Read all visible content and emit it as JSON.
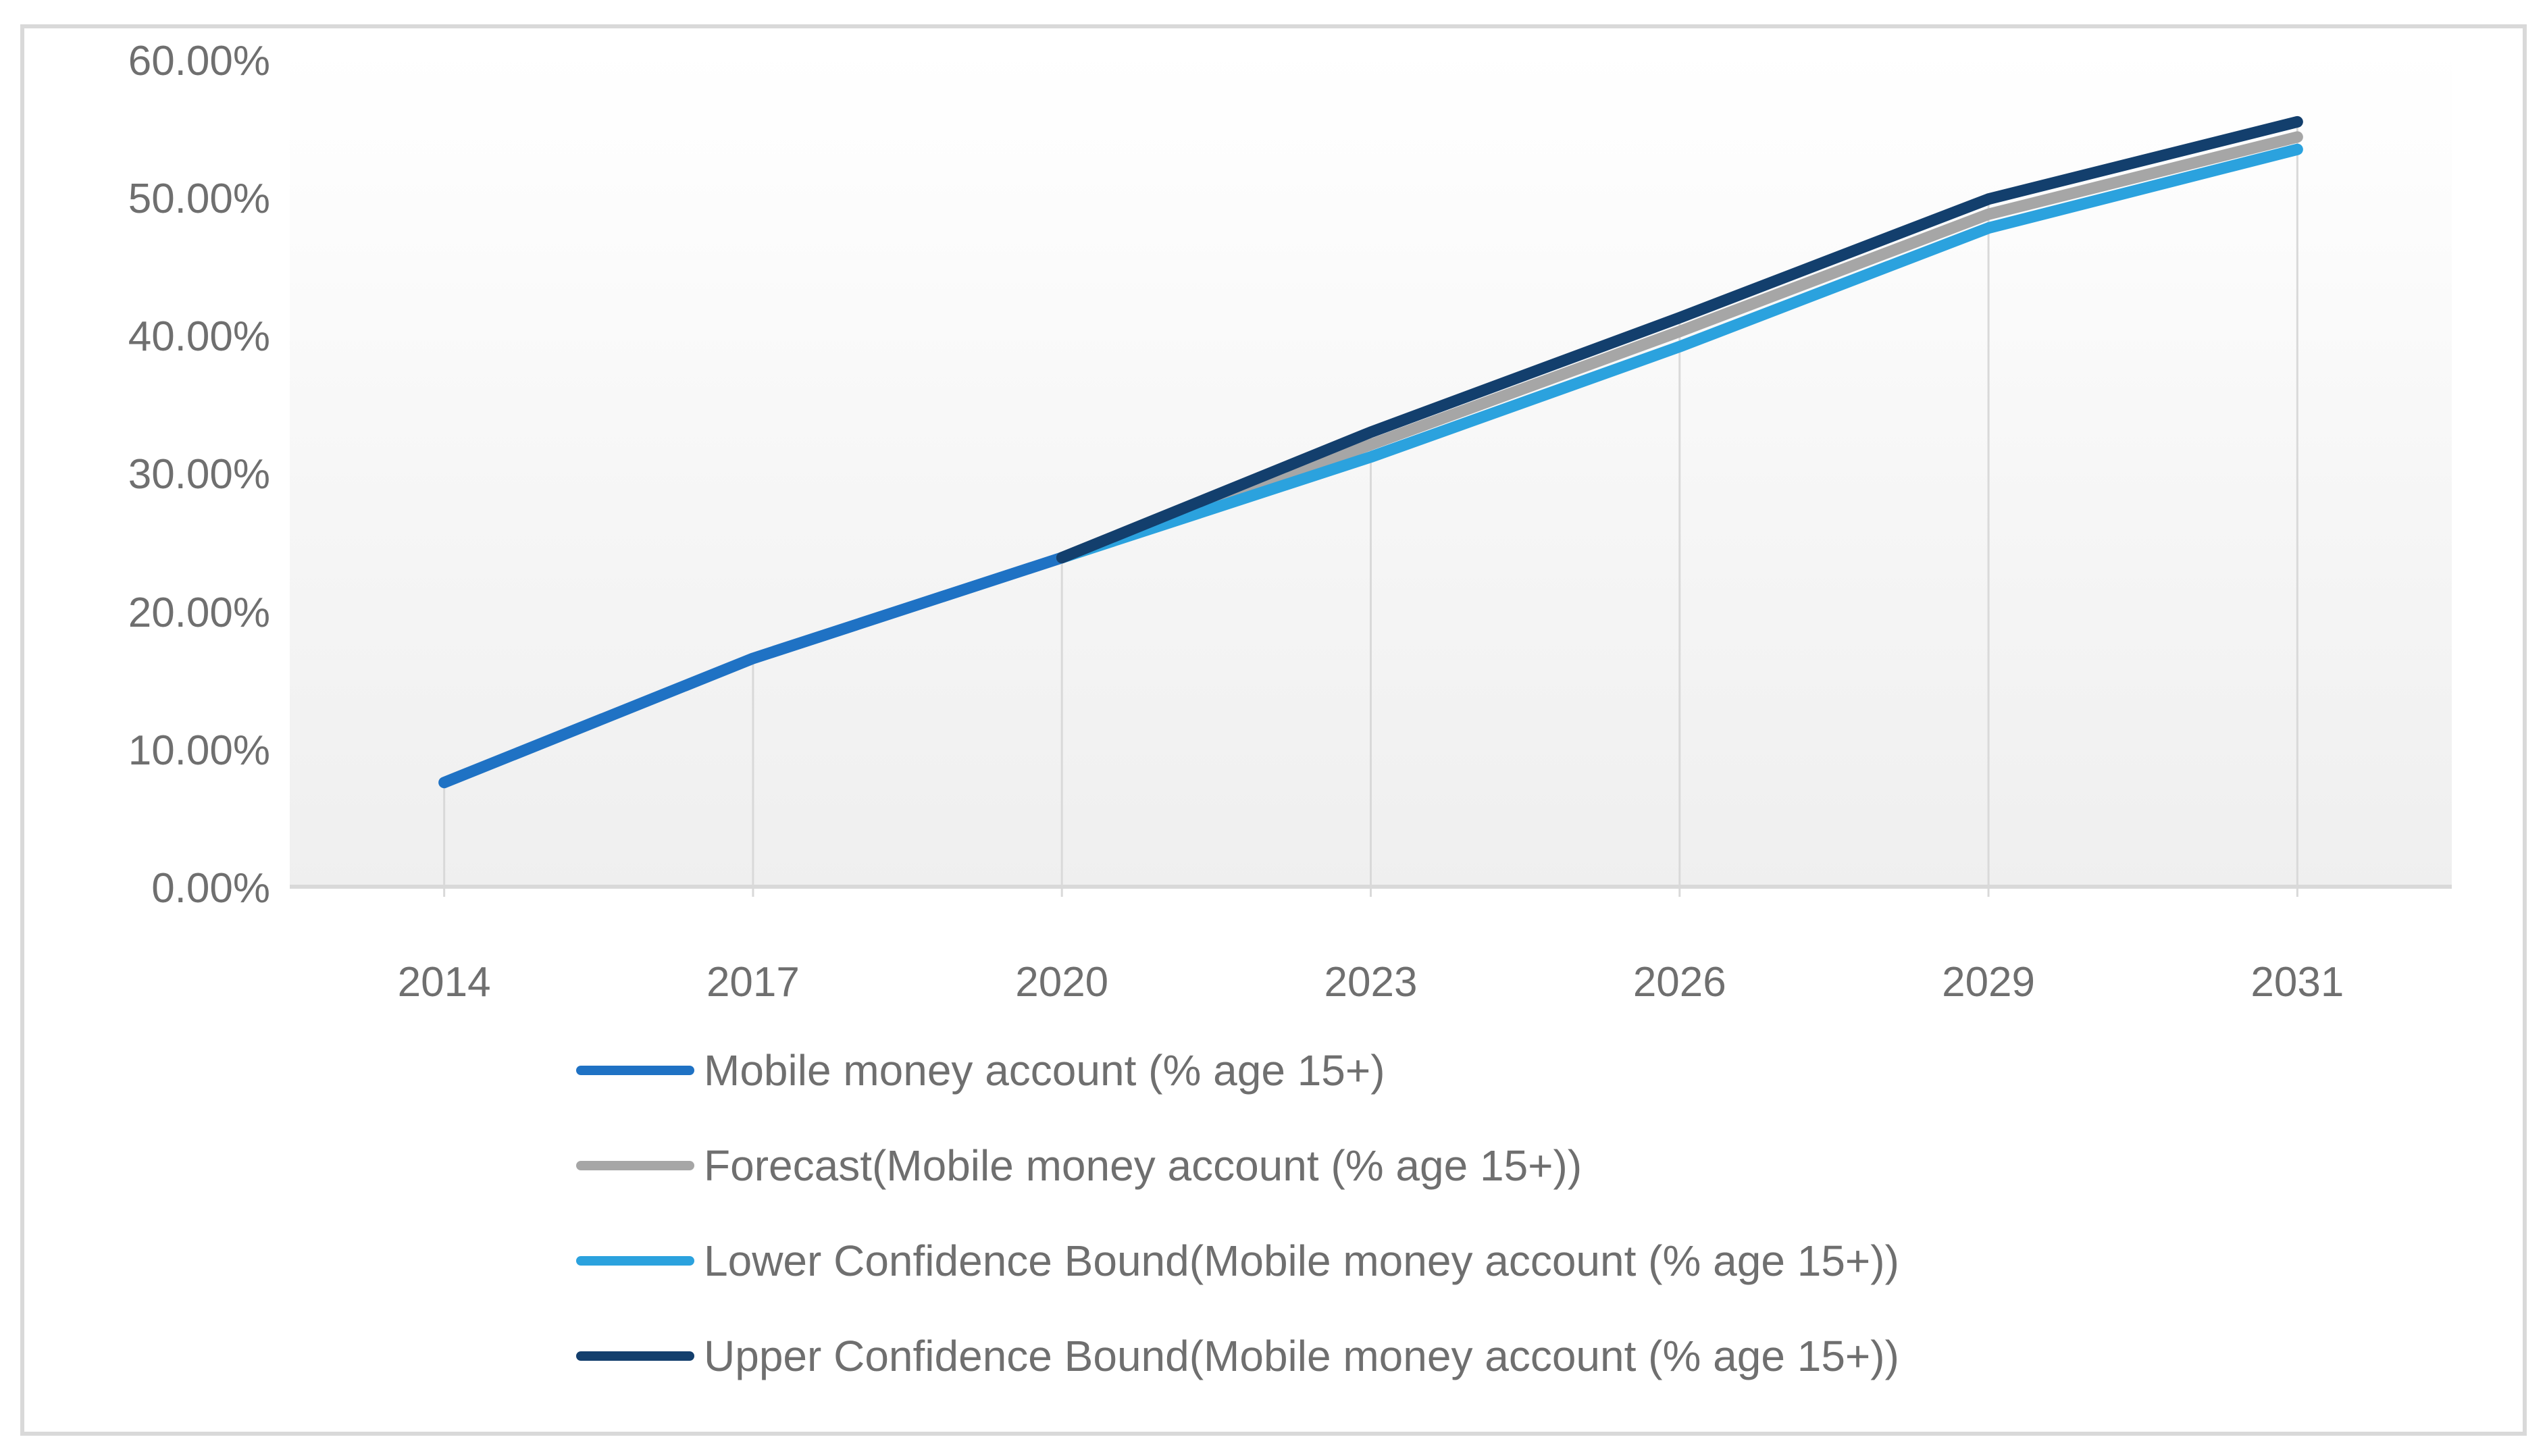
{
  "page": {
    "background": "#ffffff",
    "frame_border_color": "#d9d9d9"
  },
  "chart_data": {
    "type": "line",
    "title": "",
    "xlabel": "",
    "ylabel": "",
    "categories": [
      "2014",
      "2017",
      "2020",
      "2023",
      "2026",
      "2029",
      "2031"
    ],
    "y_axis": {
      "min": 0,
      "max": 60,
      "step": 10,
      "format": "0.00%",
      "tick_labels": [
        "60.00%",
        "50.00%",
        "40.00%",
        "30.00%",
        "20.00%",
        "10.00%",
        "0.00%"
      ],
      "tick_values": [
        60,
        50,
        40,
        30,
        20,
        10,
        0
      ]
    },
    "series": [
      {
        "name": "Mobile money account (% age 15+)",
        "color": "#1f72c4",
        "values": [
          7.7,
          16.7,
          24.0,
          null,
          null,
          null,
          null
        ]
      },
      {
        "name": "Forecast(Mobile money account (% age 15+))",
        "color": "#a6a6a6",
        "values": [
          null,
          null,
          24.0,
          32.2,
          40.4,
          48.9,
          54.5
        ]
      },
      {
        "name": "Lower Confidence Bound(Mobile money account (% age 15+))",
        "color": "#2ba2de",
        "values": [
          null,
          null,
          24.0,
          31.3,
          39.3,
          47.9,
          53.6
        ]
      },
      {
        "name": "Upper Confidence Bound(Mobile money account (% age 15+))",
        "color": "#133f6d",
        "values": [
          null,
          null,
          24.0,
          33.1,
          41.4,
          50.0,
          55.6
        ]
      }
    ],
    "gridlines": {
      "style": "vertical droplines from data points to axis",
      "color": "#d9d9d9"
    },
    "axis_line_color": "#d9d9d9",
    "plot_background": [
      "#efefef",
      "#ffffff"
    ],
    "text_color": "#6f6f6f",
    "legend_position": "bottom-left",
    "grid": "vertical only"
  },
  "legend": {
    "items": [
      {
        "label": "Mobile money account (% age 15+)",
        "color": "#1f72c4"
      },
      {
        "label": "Forecast(Mobile money account (% age 15+))",
        "color": "#a6a6a6"
      },
      {
        "label": "Lower Confidence Bound(Mobile money account (% age 15+))",
        "color": "#2ba2de"
      },
      {
        "label": "Upper Confidence Bound(Mobile money account (% age 15+))",
        "color": "#133f6d"
      }
    ]
  }
}
